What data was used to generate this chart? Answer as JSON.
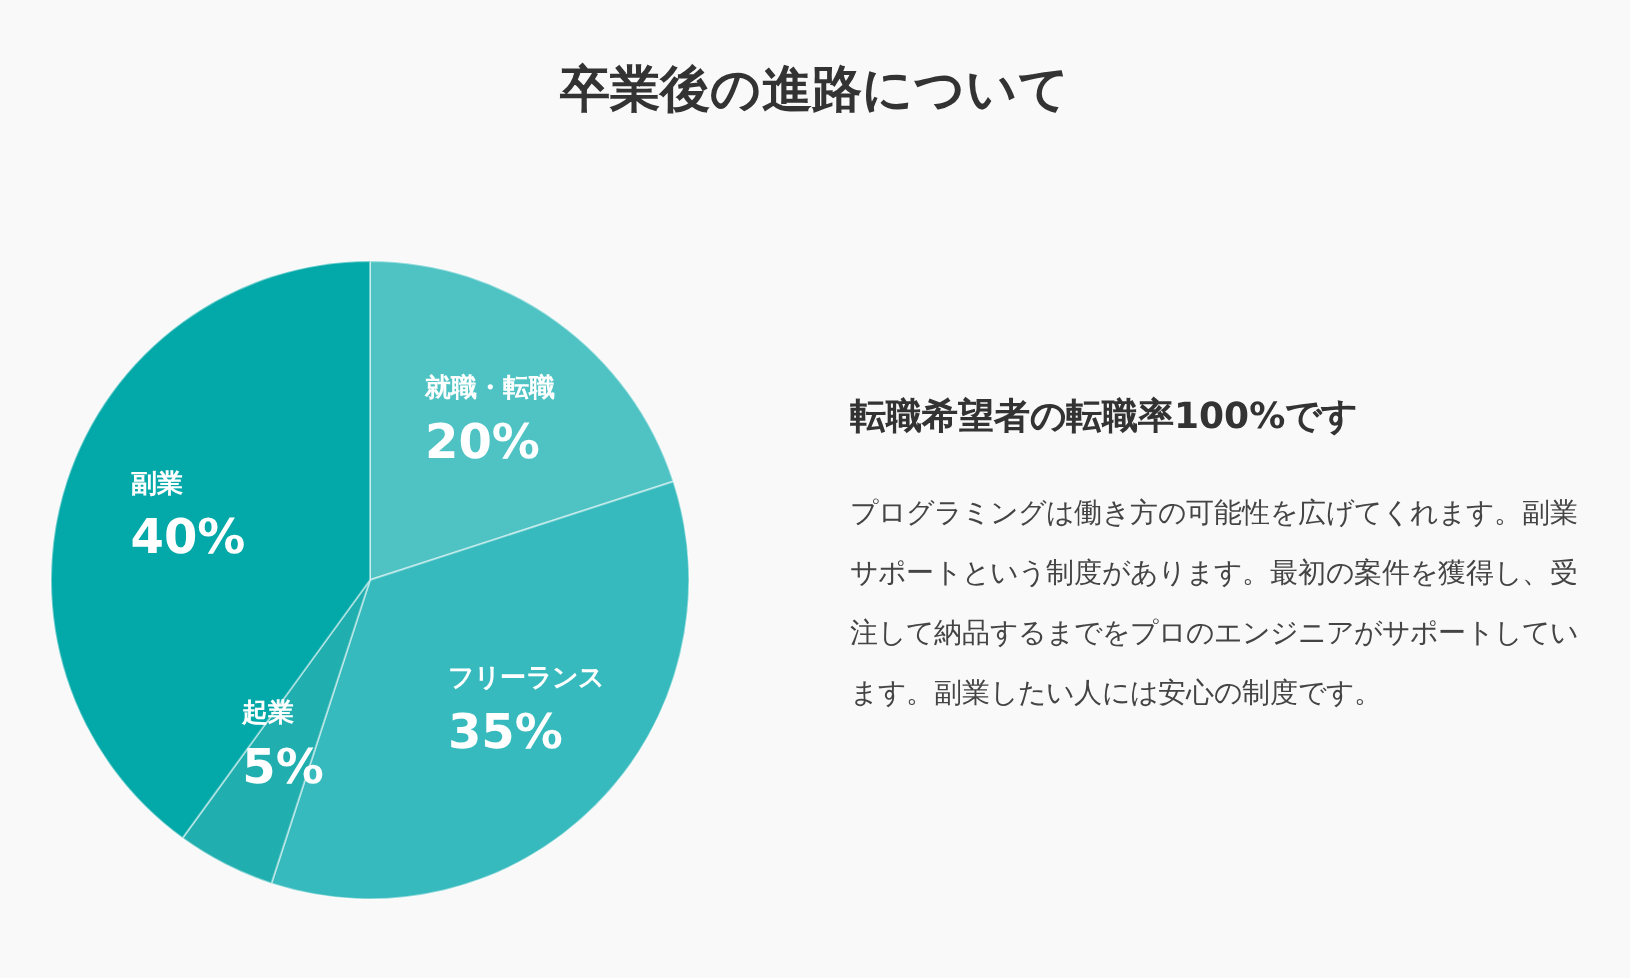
{
  "chart_data": {
    "type": "pie",
    "title": "卒業後の進路について",
    "categories": [
      "就職・転職",
      "フリーランス",
      "起業",
      "副業"
    ],
    "values": [
      20,
      35,
      5,
      40
    ],
    "colors": [
      "#4fc3c4",
      "#36babd",
      "#20aeae",
      "#03a8a8"
    ],
    "value_labels": [
      "20%",
      "35%",
      "5%",
      "40%"
    ],
    "legend": false,
    "annotations": [
      "転職希望者の転職率100%です",
      "プログラミングは働き方の可能性を広げてくれます。副業サポートという制度があります。最初の案件を獲得し、受注して納品するまでをプロのエンジニアがサポートしています。副業したい人には安心の制度です。"
    ]
  }
}
